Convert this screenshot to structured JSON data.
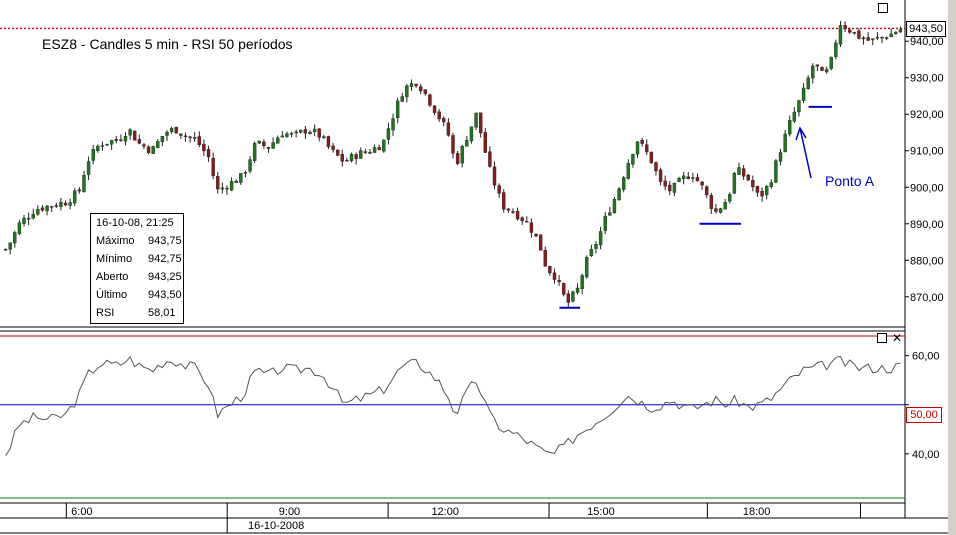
{
  "chart_title": "ESZ8 - Candles 5 min - RSI 50 períodos",
  "annotation": "Ponto A",
  "last_price_label": "943,50",
  "rsi_ref_label": "50,00",
  "info": {
    "header": "16-10-08, 21:25",
    "rows": [
      {
        "k": "Máximo",
        "v": "943,75"
      },
      {
        "k": "Mínimo",
        "v": "942,75"
      },
      {
        "k": "Aberto",
        "v": "943,25"
      },
      {
        "k": "Último",
        "v": "943,50"
      },
      {
        "k": "RSI",
        "v": "58,01"
      }
    ]
  },
  "colors": {
    "up_candle": "#1a7a1a",
    "down_candle": "#8b1a1a",
    "rsi_line": "#555555",
    "ref_line": "#0000cc",
    "overbought": "#cc0000",
    "oversold": "#008000",
    "price_dotted": "#cc0000",
    "annotation": "#0000cc"
  },
  "chart_data": [
    {
      "type": "candlestick",
      "title": "ESZ8 - Candles 5 min - RSI 50 períodos",
      "ylim": [
        862,
        948
      ],
      "yticks": [
        "870,00",
        "880,00",
        "890,00",
        "900,00",
        "910,00",
        "920,00",
        "930,00",
        "940,00"
      ],
      "ytick_values": [
        870,
        880,
        890,
        900,
        910,
        920,
        930,
        940
      ],
      "xticks": [
        "6:00",
        "9:00",
        "12:00",
        "15:00",
        "18:00"
      ],
      "xtick_positions": [
        5,
        9,
        12,
        15,
        18
      ],
      "date_label": "16-10-2008",
      "x_range": [
        3.5,
        20.8
      ],
      "close_path": [
        [
          3.55,
          883
        ],
        [
          3.8,
          890
        ],
        [
          4.1,
          894
        ],
        [
          4.4,
          895
        ],
        [
          4.7,
          896
        ],
        [
          4.95,
          899
        ],
        [
          5.1,
          907
        ],
        [
          5.35,
          912
        ],
        [
          5.7,
          913
        ],
        [
          5.9,
          916
        ],
        [
          6.1,
          912
        ],
        [
          6.35,
          910
        ],
        [
          6.6,
          915
        ],
        [
          6.8,
          916
        ],
        [
          7.0,
          914
        ],
        [
          7.2,
          913
        ],
        [
          7.45,
          908
        ],
        [
          7.6,
          899
        ],
        [
          7.85,
          901
        ],
        [
          8.1,
          903
        ],
        [
          8.35,
          912
        ],
        [
          8.6,
          911
        ],
        [
          8.85,
          915
        ],
        [
          9.1,
          914
        ],
        [
          9.35,
          916
        ],
        [
          9.6,
          914
        ],
        [
          9.8,
          910
        ],
        [
          10.05,
          907
        ],
        [
          10.3,
          909
        ],
        [
          10.55,
          910
        ],
        [
          10.8,
          912
        ],
        [
          10.95,
          918
        ],
        [
          11.2,
          927
        ],
        [
          11.45,
          929
        ],
        [
          11.6,
          926
        ],
        [
          11.85,
          920
        ],
        [
          12.05,
          915
        ],
        [
          12.2,
          906
        ],
        [
          12.45,
          915
        ],
        [
          12.6,
          920
        ],
        [
          12.85,
          905
        ],
        [
          13.1,
          895
        ],
        [
          13.35,
          893
        ],
        [
          13.6,
          890
        ],
        [
          13.8,
          885
        ],
        [
          13.95,
          878
        ],
        [
          14.1,
          876
        ],
        [
          14.35,
          868
        ],
        [
          14.55,
          872
        ],
        [
          14.7,
          879
        ],
        [
          14.95,
          886
        ],
        [
          15.1,
          892
        ],
        [
          15.3,
          898
        ],
        [
          15.5,
          906
        ],
        [
          15.7,
          913
        ],
        [
          15.95,
          908
        ],
        [
          16.15,
          901
        ],
        [
          16.35,
          899
        ],
        [
          16.55,
          902
        ],
        [
          16.75,
          904
        ],
        [
          16.95,
          900
        ],
        [
          17.2,
          893
        ],
        [
          17.45,
          897
        ],
        [
          17.6,
          905
        ],
        [
          17.85,
          902
        ],
        [
          18.05,
          897
        ],
        [
          18.25,
          901
        ],
        [
          18.45,
          910
        ],
        [
          18.65,
          918
        ],
        [
          18.9,
          926
        ],
        [
          19.1,
          934
        ],
        [
          19.3,
          930
        ],
        [
          19.45,
          935
        ],
        [
          19.6,
          945
        ],
        [
          19.8,
          943
        ],
        [
          20.0,
          941
        ],
        [
          20.2,
          940
        ],
        [
          20.4,
          941
        ],
        [
          20.6,
          942
        ],
        [
          20.8,
          943.5
        ]
      ],
      "last_value": 943.5,
      "horizontal_marks": [
        {
          "x0": 14.2,
          "x1": 14.6,
          "y": 867
        },
        {
          "x0": 16.9,
          "x1": 17.7,
          "y": 890
        },
        {
          "x0": 19.0,
          "x1": 19.45,
          "y": 922
        }
      ]
    },
    {
      "type": "line",
      "title": "RSI",
      "ylim": [
        31,
        64
      ],
      "yticks": [
        "40,00",
        "50,00",
        "60,00"
      ],
      "ytick_values": [
        40,
        50,
        60
      ],
      "reference_lines": [
        50
      ],
      "overbought": 64,
      "oversold": 31,
      "series": [
        {
          "values": [
            [
              3.55,
              40
            ],
            [
              3.8,
              46
            ],
            [
              4.1,
              47.5
            ],
            [
              4.4,
              47
            ],
            [
              4.7,
              48
            ],
            [
              4.95,
              52
            ],
            [
              5.1,
              56
            ],
            [
              5.35,
              58.5
            ],
            [
              5.7,
              58
            ],
            [
              5.9,
              59.5
            ],
            [
              6.1,
              58
            ],
            [
              6.35,
              57
            ],
            [
              6.6,
              59
            ],
            [
              6.8,
              59
            ],
            [
              7.0,
              58
            ],
            [
              7.2,
              57.5
            ],
            [
              7.45,
              54
            ],
            [
              7.6,
              48
            ],
            [
              7.85,
              50
            ],
            [
              8.1,
              52
            ],
            [
              8.35,
              57
            ],
            [
              8.6,
              56
            ],
            [
              8.85,
              57.5
            ],
            [
              9.1,
              57
            ],
            [
              9.35,
              57.5
            ],
            [
              9.6,
              56.5
            ],
            [
              9.8,
              54
            ],
            [
              10.05,
              50
            ],
            [
              10.3,
              51
            ],
            [
              10.55,
              52
            ],
            [
              10.8,
              53
            ],
            [
              10.95,
              55
            ],
            [
              11.2,
              58
            ],
            [
              11.45,
              58.5
            ],
            [
              11.6,
              57.5
            ],
            [
              11.85,
              55
            ],
            [
              12.05,
              52
            ],
            [
              12.2,
              48
            ],
            [
              12.45,
              53
            ],
            [
              12.6,
              55
            ],
            [
              12.85,
              48
            ],
            [
              13.1,
              45
            ],
            [
              13.35,
              44
            ],
            [
              13.6,
              42.5
            ],
            [
              13.8,
              41
            ],
            [
              13.95,
              40
            ],
            [
              14.1,
              40
            ],
            [
              14.35,
              42
            ],
            [
              14.55,
              44
            ],
            [
              14.7,
              45
            ],
            [
              14.95,
              47
            ],
            [
              15.1,
              48
            ],
            [
              15.3,
              50
            ],
            [
              15.5,
              52
            ],
            [
              15.7,
              51
            ],
            [
              15.95,
              49.5
            ],
            [
              16.15,
              50
            ],
            [
              16.35,
              51
            ],
            [
              16.55,
              50
            ],
            [
              16.75,
              49
            ],
            [
              16.95,
              50
            ],
            [
              17.2,
              51
            ],
            [
              17.45,
              50
            ],
            [
              17.6,
              51
            ],
            [
              17.85,
              49.5
            ],
            [
              18.05,
              50
            ],
            [
              18.25,
              51
            ],
            [
              18.45,
              53
            ],
            [
              18.65,
              55
            ],
            [
              18.9,
              57
            ],
            [
              19.1,
              57.5
            ],
            [
              19.3,
              58
            ],
            [
              19.45,
              58.5
            ],
            [
              19.6,
              59
            ],
            [
              19.8,
              58
            ],
            [
              20.0,
              57.5
            ],
            [
              20.2,
              57.5
            ],
            [
              20.4,
              57.5
            ],
            [
              20.6,
              57.5
            ],
            [
              20.8,
              58
            ]
          ]
        }
      ]
    }
  ]
}
